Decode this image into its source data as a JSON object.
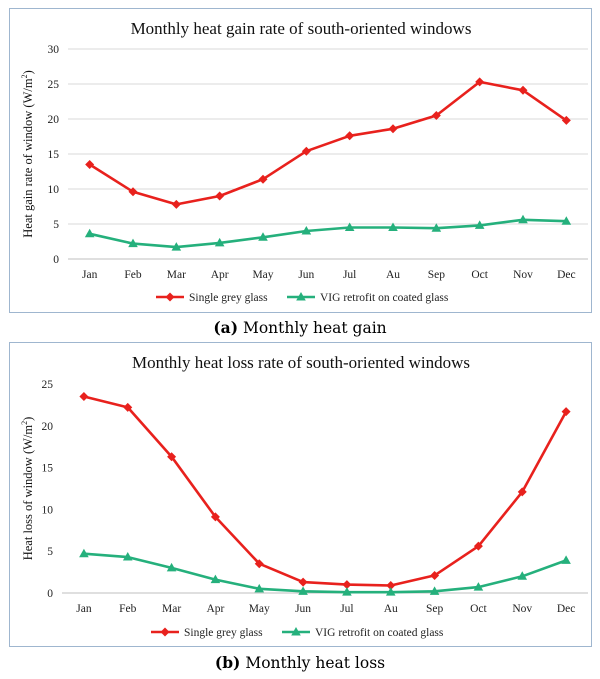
{
  "chart_data": [
    {
      "type": "line",
      "title": "Monthly heat gain rate of south-oriented windows",
      "ylabel": "Heat gain rate of window (W/m",
      "ylabel_sup": "2",
      "ylabel_close": ")",
      "ylim": [
        0,
        30
      ],
      "yticks": [
        "0",
        "5",
        "10",
        "15",
        "20",
        "25",
        "30"
      ],
      "ytick_values": [
        0,
        5,
        10,
        15,
        20,
        25,
        30
      ],
      "categories": [
        "Jan",
        "Feb",
        "Mar",
        "Apr",
        "May",
        "Jun",
        "Jul",
        "Au",
        "Sep",
        "Oct",
        "Nov",
        "Dec"
      ],
      "grid": true,
      "legend_position": "bottom",
      "series": [
        {
          "name": "Single grey glass",
          "color": "#e8211d",
          "marker": "diamond",
          "values": [
            13.5,
            9.6,
            7.8,
            9.0,
            11.4,
            15.4,
            17.6,
            18.6,
            20.5,
            25.3,
            24.1,
            19.8
          ]
        },
        {
          "name": "VIG retrofit on coated glass",
          "color": "#25b07c",
          "marker": "triangle",
          "values": [
            3.6,
            2.2,
            1.7,
            2.3,
            3.1,
            4.0,
            4.5,
            4.5,
            4.4,
            4.8,
            5.6,
            5.4
          ]
        }
      ]
    },
    {
      "type": "line",
      "title": "Monthly heat loss rate of south-oriented windows",
      "ylabel": "Heat loss of window (W/m",
      "ylabel_sup": "2",
      "ylabel_close": ")",
      "ylim": [
        0,
        25
      ],
      "yticks": [
        "0",
        "5",
        "10",
        "15",
        "20",
        "25"
      ],
      "ytick_values": [
        0,
        5,
        10,
        15,
        20,
        25
      ],
      "categories": [
        "Jan",
        "Feb",
        "Mar",
        "Apr",
        "May",
        "Jun",
        "Jul",
        "Au",
        "Sep",
        "Oct",
        "Nov",
        "Dec"
      ],
      "grid": false,
      "legend_position": "bottom",
      "series": [
        {
          "name": "Single grey glass",
          "color": "#e8211d",
          "marker": "diamond",
          "values": [
            23.5,
            22.2,
            16.3,
            9.1,
            3.5,
            1.3,
            1.0,
            0.9,
            2.1,
            5.6,
            12.1,
            21.7
          ]
        },
        {
          "name": "VIG retrofit on coated glass",
          "color": "#25b07c",
          "marker": "triangle",
          "values": [
            4.7,
            4.3,
            3.0,
            1.6,
            0.5,
            0.2,
            0.1,
            0.1,
            0.2,
            0.7,
            2.0,
            3.9
          ]
        }
      ]
    }
  ],
  "captions": [
    {
      "label": "(a)",
      "text": "Monthly heat gain"
    },
    {
      "label": "(b)",
      "text": "Monthly heat loss"
    }
  ]
}
